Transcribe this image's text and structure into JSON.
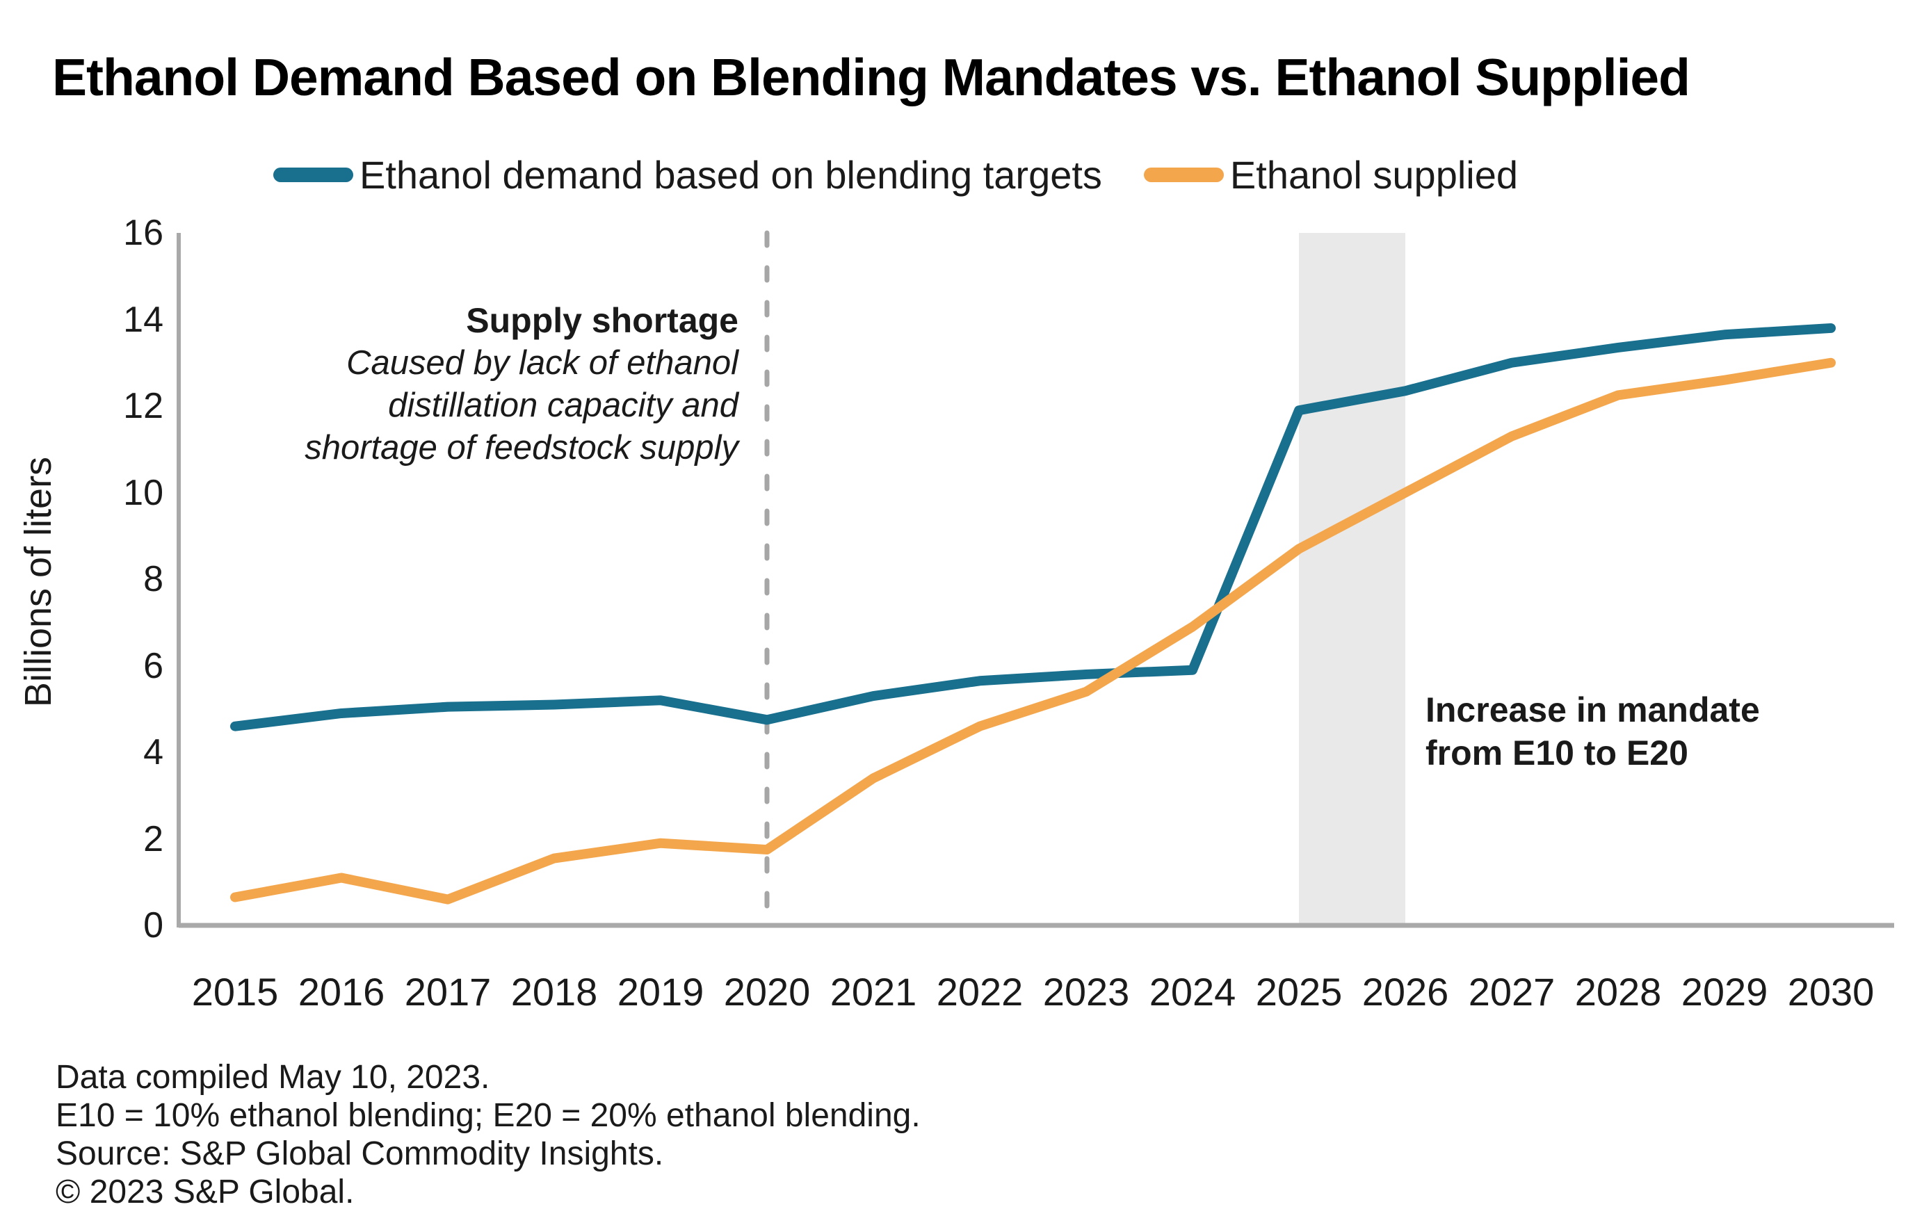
{
  "title": "Ethanol Demand Based on Blending Mandates vs. Ethanol Supplied",
  "legend": [
    {
      "label": "Ethanol demand based on blending targets",
      "color": "#186f8e"
    },
    {
      "label": "Ethanol supplied",
      "color": "#f4a64c"
    }
  ],
  "annotations": {
    "supply_shortage": {
      "heading": "Supply shortage",
      "lines": [
        "Caused by lack of ethanol",
        "distillation capacity and",
        "shortage of feedstock supply"
      ]
    },
    "mandate_increase": {
      "lines": [
        "Increase in mandate",
        "from E10 to E20"
      ]
    }
  },
  "footnotes": [
    "Data compiled May 10, 2023.",
    "E10 = 10% ethanol blending; E20 = 20% ethanol blending.",
    "Source: S&P Global Commodity Insights.",
    "© 2023 S&P Global."
  ],
  "chart_data": {
    "type": "line",
    "x": [
      2015,
      2016,
      2017,
      2018,
      2019,
      2020,
      2021,
      2022,
      2023,
      2024,
      2025,
      2026,
      2027,
      2028,
      2029,
      2030
    ],
    "series": [
      {
        "name": "Ethanol demand based on blending targets",
        "color": "#186f8e",
        "values": [
          4.6,
          4.9,
          5.05,
          5.1,
          5.2,
          4.75,
          5.3,
          5.65,
          5.8,
          5.9,
          11.9,
          12.35,
          13.0,
          13.35,
          13.65,
          13.8
        ]
      },
      {
        "name": "Ethanol supplied",
        "color": "#f4a64c",
        "values": [
          0.65,
          1.1,
          0.6,
          1.55,
          1.9,
          1.75,
          3.4,
          4.6,
          5.4,
          6.9,
          8.7,
          10.0,
          11.3,
          12.25,
          12.6,
          13.0
        ]
      }
    ],
    "ylabel": "Billions of liters",
    "xlabel": "",
    "ylim": [
      0,
      16
    ],
    "y_ticks": [
      0,
      2,
      4,
      6,
      8,
      10,
      12,
      14,
      16
    ],
    "grid": false,
    "legend_position": "top",
    "highlight_band": {
      "from": 2025,
      "to": 2026,
      "color": "#e9e9e9"
    },
    "dashed_vline": {
      "x": 2020,
      "color": "#a6a6a6"
    },
    "axis_color": "#a9a9a9"
  }
}
